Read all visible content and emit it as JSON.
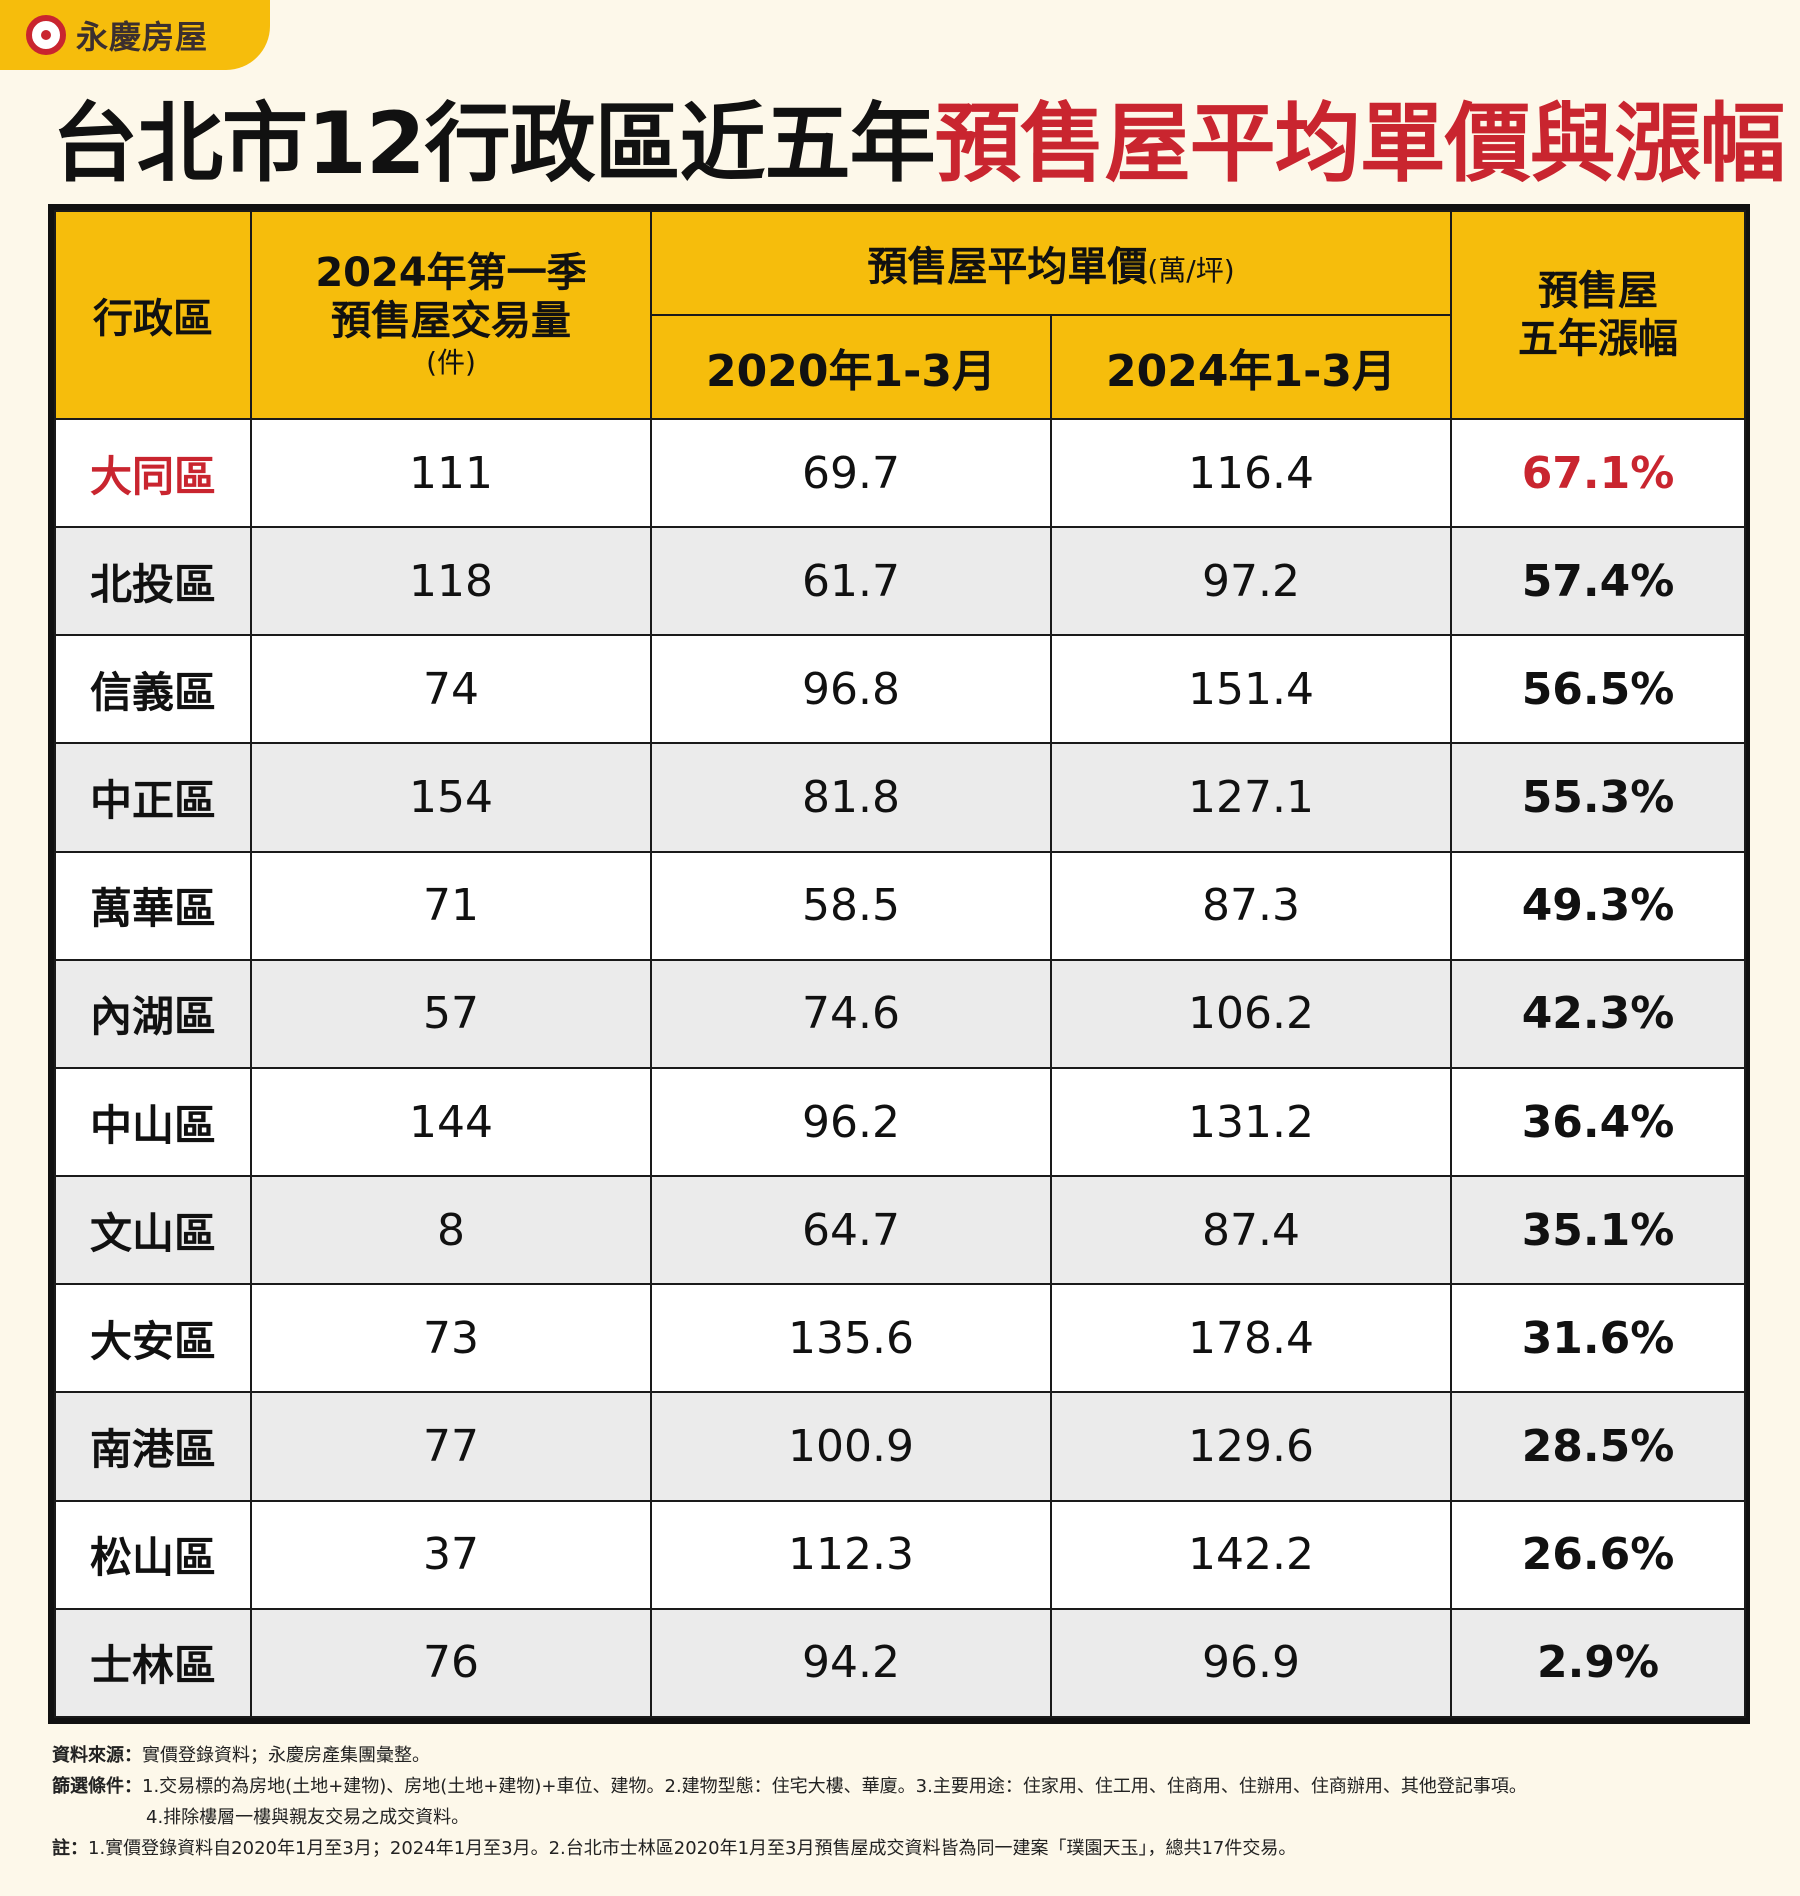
{
  "brand": {
    "name": "永慶房屋"
  },
  "title": {
    "black": "台北市12行政區近五年",
    "red": "預售屋平均單價與漲幅"
  },
  "table": {
    "headers": {
      "district": "行政區",
      "volume_line1": "2024年第一季",
      "volume_line2": "預售屋交易量",
      "volume_unit": "(件)",
      "price": "預售屋平均單價",
      "price_unit": "(萬/坪)",
      "year_2020": "2020年1-3月",
      "year_2024": "2024年1-3月",
      "change_line1": "預售屋",
      "change_line2": "五年漲幅"
    },
    "rows": [
      {
        "district": "大同區",
        "volume": "111",
        "p2020": "69.7",
        "p2024": "116.4",
        "change": "67.1%"
      },
      {
        "district": "北投區",
        "volume": "118",
        "p2020": "61.7",
        "p2024": "97.2",
        "change": "57.4%"
      },
      {
        "district": "信義區",
        "volume": "74",
        "p2020": "96.8",
        "p2024": "151.4",
        "change": "56.5%"
      },
      {
        "district": "中正區",
        "volume": "154",
        "p2020": "81.8",
        "p2024": "127.1",
        "change": "55.3%"
      },
      {
        "district": "萬華區",
        "volume": "71",
        "p2020": "58.5",
        "p2024": "87.3",
        "change": "49.3%"
      },
      {
        "district": "內湖區",
        "volume": "57",
        "p2020": "74.6",
        "p2024": "106.2",
        "change": "42.3%"
      },
      {
        "district": "中山區",
        "volume": "144",
        "p2020": "96.2",
        "p2024": "131.2",
        "change": "36.4%"
      },
      {
        "district": "文山區",
        "volume": "8",
        "p2020": "64.7",
        "p2024": "87.4",
        "change": "35.1%"
      },
      {
        "district": "大安區",
        "volume": "73",
        "p2020": "135.6",
        "p2024": "178.4",
        "change": "31.6%"
      },
      {
        "district": "南港區",
        "volume": "77",
        "p2020": "100.9",
        "p2024": "129.6",
        "change": "28.5%"
      },
      {
        "district": "松山區",
        "volume": "37",
        "p2020": "112.3",
        "p2024": "142.2",
        "change": "26.6%"
      },
      {
        "district": "士林區",
        "volume": "76",
        "p2020": "94.2",
        "p2024": "96.9",
        "change": "2.9%"
      }
    ]
  },
  "notes": {
    "source_label": "資料來源：",
    "source_text": "實價登錄資料；永慶房產集團彙整。",
    "filter_label": "篩選條件：",
    "filter_text1": "1.交易標的為房地(土地+建物)、房地(土地+建物)+車位、建物。2.建物型態：住宅大樓、華廈。3.主要用途：住家用、住工用、住商用、住辦用、住商辦用、其他登記事項。",
    "filter_text2": "4.排除樓層一樓與親友交易之成交資料。",
    "remark_label": "註：",
    "remark_text": "1.實價登錄資料自2020年1月至3月；2024年1月至3月。2.台北市士林區2020年1月至3月預售屋成交資料皆為同一建案「璞園天玉」，總共17件交易。"
  },
  "colors": {
    "header_bg": "#f6bd0c",
    "highlight_red": "#c9252f",
    "page_bg": "#fdf8ea",
    "stripe_gray": "#ebebeb"
  },
  "chart_data": {
    "type": "table",
    "title": "台北市12行政區近五年預售屋平均單價與漲幅",
    "columns": [
      "行政區",
      "2024年第一季預售屋交易量(件)",
      "2020年1-3月",
      "2024年1-3月",
      "預售屋五年漲幅"
    ],
    "categories": [
      "大同區",
      "北投區",
      "信義區",
      "中正區",
      "萬華區",
      "內湖區",
      "中山區",
      "文山區",
      "大安區",
      "南港區",
      "松山區",
      "士林區"
    ],
    "series": [
      {
        "name": "2024年第一季預售屋交易量(件)",
        "values": [
          111,
          118,
          74,
          154,
          71,
          57,
          144,
          8,
          73,
          77,
          37,
          76
        ]
      },
      {
        "name": "2020年1-3月",
        "values": [
          69.7,
          61.7,
          96.8,
          81.8,
          58.5,
          74.6,
          96.2,
          64.7,
          135.6,
          100.9,
          112.3,
          94.2
        ]
      },
      {
        "name": "2024年1-3月",
        "values": [
          116.4,
          97.2,
          151.4,
          127.1,
          87.3,
          106.2,
          131.2,
          87.4,
          178.4,
          129.6,
          142.2,
          96.9
        ]
      },
      {
        "name": "預售屋五年漲幅",
        "values": [
          67.1,
          57.4,
          56.5,
          55.3,
          49.3,
          42.3,
          36.4,
          35.1,
          31.6,
          28.5,
          26.6,
          2.9
        ]
      }
    ]
  }
}
